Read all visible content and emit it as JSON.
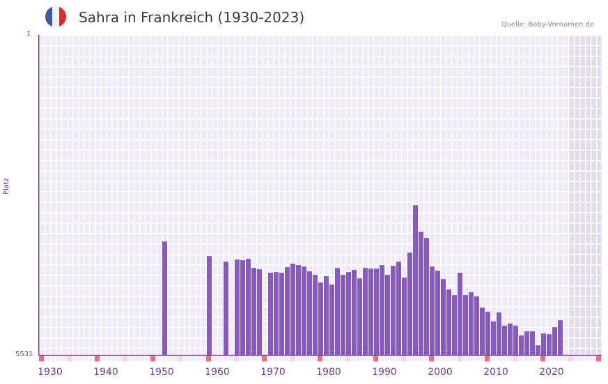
{
  "header": {
    "title": "Sahra in Frankreich (1930-2023)",
    "source": "Quelle: Baby-Vornamen.de",
    "flag_colors": [
      "#3b5aa8",
      "#f4f4f4",
      "#e5242c"
    ]
  },
  "axis": {
    "y_top_label": "1",
    "y_bottom_label": "5531",
    "y_title": "Platz",
    "x_labels": [
      "1930",
      "1940",
      "1950",
      "1960",
      "1970",
      "1980",
      "1990",
      "2000",
      "2010",
      "2020"
    ]
  },
  "colors": {
    "bar": "#8a55c6",
    "axis": "#6b3fa0",
    "grid_bg": "#efeafa",
    "shade": "#e2dcee",
    "marker_strong": "#e4727c",
    "marker_light": "#f5d6de"
  },
  "chart_data": {
    "type": "bar",
    "title": "Sahra in Frankreich (1930-2023)",
    "xlabel": "",
    "ylabel": "Platz",
    "ylim": [
      5531,
      1
    ],
    "y_inverted": true,
    "grid": true,
    "x": [
      1950,
      1958,
      1961,
      1963,
      1964,
      1965,
      1966,
      1967,
      1969,
      1970,
      1971,
      1972,
      1973,
      1974,
      1975,
      1976,
      1977,
      1978,
      1979,
      1980,
      1981,
      1982,
      1983,
      1984,
      1985,
      1986,
      1987,
      1988,
      1989,
      1990,
      1991,
      1992,
      1993,
      1994,
      1995,
      1996,
      1997,
      1998,
      1999,
      2000,
      2001,
      2002,
      2003,
      2004,
      2005,
      2006,
      2007,
      2008,
      2009,
      2010,
      2011,
      2012,
      2013,
      2014,
      2015,
      2016,
      2017,
      2018,
      2019,
      2020,
      2021
    ],
    "values": [
      3573,
      3826,
      3922,
      3886,
      3898,
      3874,
      4030,
      4054,
      4114,
      4102,
      4114,
      4018,
      3958,
      3982,
      4006,
      4090,
      4150,
      4283,
      4174,
      4319,
      4030,
      4150,
      4102,
      4066,
      4211,
      4030,
      4042,
      4042,
      3982,
      4150,
      3994,
      3922,
      4198,
      3765,
      2948,
      3405,
      3513,
      4006,
      4078,
      4223,
      4403,
      4499,
      4114,
      4499,
      4451,
      4523,
      4716,
      4788,
      4957,
      4800,
      5029,
      4993,
      5029,
      5198,
      5126,
      5126,
      5366,
      5162,
      5174,
      5054,
      4933
    ]
  }
}
